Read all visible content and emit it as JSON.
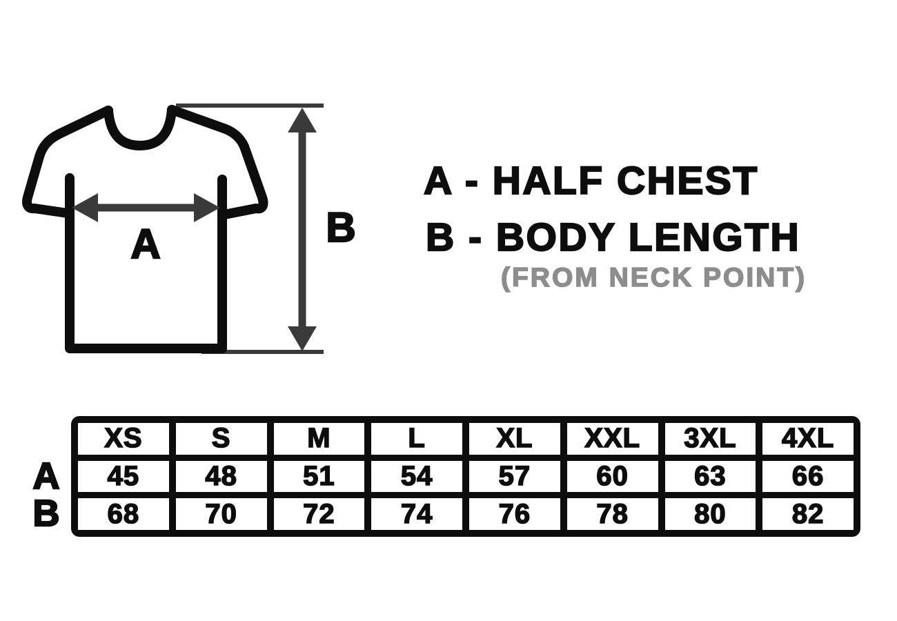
{
  "colors": {
    "background": "#ffffff",
    "ink": "#0d0d0d",
    "dimension_gray": "#3a3a3a",
    "muted_gray": "#8d8d8d",
    "table_border": "#0d0d0d",
    "cell_background": "#ffffff"
  },
  "diagram": {
    "chest_arrow_label": "A",
    "length_arrow_label": "B"
  },
  "legend": {
    "line_a": "A - HALF CHEST",
    "line_b": "B - BODY LENGTH",
    "line_b_note": "(FROM NECK POINT)"
  },
  "size_table": {
    "columns": [
      "XS",
      "S",
      "M",
      "L",
      "XL",
      "XXL",
      "3XL",
      "4XL"
    ],
    "rows": [
      {
        "label": "A",
        "values": [
          "45",
          "48",
          "51",
          "54",
          "57",
          "60",
          "63",
          "66"
        ]
      },
      {
        "label": "B",
        "values": [
          "68",
          "70",
          "72",
          "74",
          "76",
          "78",
          "80",
          "82"
        ]
      }
    ]
  }
}
